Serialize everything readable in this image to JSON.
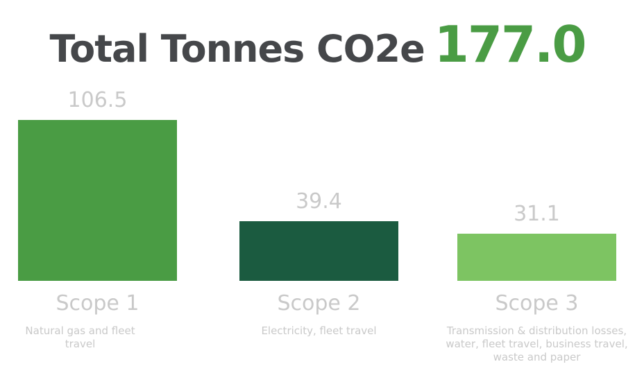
{
  "header": {
    "title": "Total Tonnes CO2e",
    "total": "177.0"
  },
  "chart_data": {
    "type": "bar",
    "title": "Total Tonnes CO2e 177.0",
    "categories": [
      "Scope 1",
      "Scope 2",
      "Scope 3"
    ],
    "values": [
      106.5,
      39.4,
      31.1
    ],
    "value_labels": [
      "106.5",
      "39.4",
      "31.1"
    ],
    "descriptions": [
      "Natural gas and fleet travel",
      "Electricity, fleet travel",
      "Transmission & distribution losses, water, fleet travel, business travel, waste and paper"
    ],
    "colors": [
      "#4a9c44",
      "#1b5b40",
      "#7dc462"
    ],
    "xlabel": "",
    "ylabel": "",
    "ylim": [
      0,
      106.5
    ],
    "grid": false
  }
}
